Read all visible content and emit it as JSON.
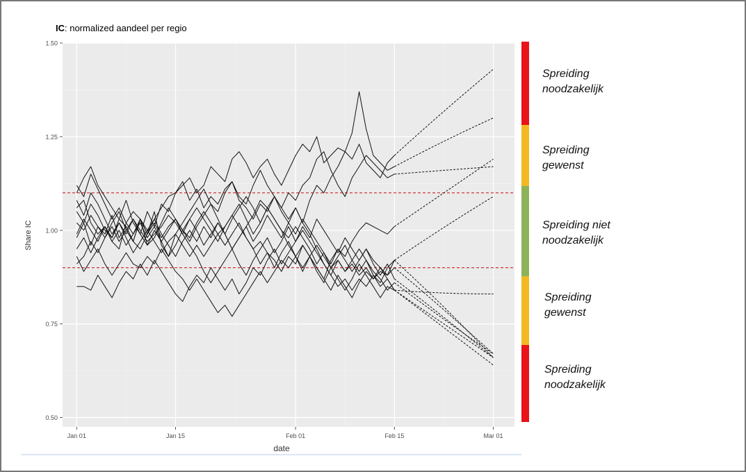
{
  "chart_data": {
    "type": "line",
    "title_bold": "IC",
    "title_rest": ": normalized aandeel per regio",
    "xlabel": "date",
    "ylabel": "Share IC",
    "x_ticks": [
      "Jan 01",
      "Jan 15",
      "Feb 01",
      "Feb 15",
      "Mar 01"
    ],
    "x_tick_days": [
      0,
      14,
      31,
      45,
      59
    ],
    "y_ticks": [
      "1.50",
      "1.25",
      "1.00",
      "0.75",
      "0.50"
    ],
    "y_tick_values": [
      1.5,
      1.25,
      1.0,
      0.75,
      0.5
    ],
    "ylim": [
      0.475,
      1.5
    ],
    "xlim_days": [
      -2,
      62
    ],
    "thresholds": [
      1.1,
      0.9
    ],
    "threshold_color": "#cc2222",
    "observed_end_day": 45,
    "series": [
      {
        "values": [
          1.06,
          1.08,
          1.02,
          0.99,
          1.01,
          0.97,
          0.95,
          1.02,
          1.05,
          1.03,
          0.99,
          1.03,
          1.06,
          1.09,
          1.1,
          1.12,
          1.14,
          1.1,
          1.12,
          1.17,
          1.15,
          1.13,
          1.19,
          1.21,
          1.18,
          1.14,
          1.17,
          1.19,
          1.15,
          1.12,
          1.16,
          1.2,
          1.23,
          1.21,
          1.25,
          1.18,
          1.2,
          1.22,
          1.21,
          1.19,
          1.23,
          1.18,
          1.16,
          1.14,
          1.18,
          1.2
        ],
        "projection": [
          [
            45,
            1.2
          ],
          [
            52,
            1.32
          ],
          [
            59,
            1.43
          ]
        ]
      },
      {
        "values": [
          1.1,
          1.14,
          1.17,
          1.12,
          1.09,
          1.06,
          1.03,
          1.08,
          1.02,
          0.99,
          1.05,
          1.01,
          1.07,
          1.05,
          1.1,
          1.13,
          1.08,
          1.11,
          1.06,
          1.09,
          1.07,
          1.11,
          1.13,
          1.08,
          1.06,
          1.03,
          1.07,
          1.05,
          1.09,
          1.06,
          1.03,
          1.06,
          1.02,
          1.08,
          1.12,
          1.1,
          1.14,
          1.17,
          1.21,
          1.26,
          1.37,
          1.27,
          1.2,
          1.18,
          1.16,
          1.17
        ],
        "projection": [
          [
            45,
            1.17
          ],
          [
            52,
            1.24
          ],
          [
            59,
            1.3
          ]
        ]
      },
      {
        "values": [
          0.98,
          1.02,
          0.96,
          1.01,
          0.99,
          1.04,
          0.98,
          1.01,
          0.97,
          1.03,
          0.99,
          1.05,
          0.96,
          0.93,
          0.99,
          1.02,
          1.05,
          1.08,
          1.11,
          1.07,
          1.05,
          1.1,
          1.13,
          1.09,
          1.07,
          1.12,
          1.16,
          1.12,
          1.09,
          1.06,
          1.1,
          1.08,
          1.12,
          1.14,
          1.19,
          1.21,
          1.16,
          1.12,
          1.09,
          1.14,
          1.17,
          1.2,
          1.18,
          1.16,
          1.14,
          1.15
        ],
        "projection": [
          [
            45,
            1.15
          ],
          [
            52,
            1.16
          ],
          [
            59,
            1.17
          ]
        ]
      },
      {
        "values": [
          1.02,
          1.0,
          1.04,
          1.01,
          0.98,
          1.02,
          1.05,
          1.0,
          0.97,
          1.03,
          0.96,
          0.98,
          1.02,
          1.06,
          1.03,
          1.0,
          0.97,
          1.01,
          1.04,
          1.07,
          1.03,
          0.99,
          0.95,
          0.98,
          1.01,
          1.04,
          1.08,
          1.06,
          1.03,
          1.0,
          0.96,
          0.93,
          0.89,
          0.93,
          0.9,
          0.87,
          0.92,
          0.95,
          0.93,
          0.97,
          1.0,
          1.02,
          1.01,
          1.0,
          0.99,
          1.01
        ],
        "projection": [
          [
            45,
            1.01
          ],
          [
            52,
            1.1
          ],
          [
            59,
            1.19
          ]
        ]
      },
      {
        "values": [
          1.05,
          1.02,
          1.07,
          1.04,
          1.0,
          0.98,
          1.03,
          1.01,
          0.97,
          0.95,
          0.99,
          1.02,
          0.98,
          1.01,
          1.03,
          1.0,
          0.98,
          1.02,
          1.05,
          1.02,
          0.99,
          1.01,
          1.04,
          1.01,
          0.98,
          0.95,
          0.97,
          0.94,
          0.92,
          0.89,
          0.93,
          0.91,
          0.96,
          0.93,
          0.9,
          0.87,
          0.84,
          0.88,
          0.85,
          0.82,
          0.86,
          0.89,
          0.87,
          0.9,
          0.88,
          0.92
        ],
        "projection": [
          [
            45,
            0.92
          ],
          [
            52,
            1.01
          ],
          [
            59,
            1.09
          ]
        ]
      },
      {
        "values": [
          0.99,
          1.03,
          1.0,
          0.97,
          1.01,
          0.98,
          1.02,
          0.99,
          1.03,
          1.0,
          0.97,
          0.99,
          1.01,
          1.04,
          1.02,
          0.99,
          1.03,
          1.06,
          1.03,
          1.0,
          0.97,
          1.01,
          1.04,
          1.07,
          1.03,
          0.99,
          1.02,
          1.06,
          1.03,
          1.0,
          0.98,
          1.01,
          0.98,
          0.95,
          0.91,
          0.94,
          0.9,
          0.93,
          0.96,
          0.92,
          0.89,
          0.92,
          0.88,
          0.85,
          0.87,
          0.84
        ],
        "projection": [
          [
            45,
            0.84
          ],
          [
            52,
            0.83
          ],
          [
            59,
            0.83
          ]
        ]
      },
      {
        "values": [
          0.85,
          0.85,
          0.84,
          0.88,
          0.85,
          0.82,
          0.86,
          0.89,
          0.87,
          0.91,
          0.88,
          0.92,
          0.89,
          0.86,
          0.83,
          0.81,
          0.85,
          0.88,
          0.86,
          0.9,
          0.87,
          0.84,
          0.87,
          0.83,
          0.86,
          0.9,
          0.88,
          0.92,
          0.95,
          0.91,
          0.94,
          0.97,
          1.0,
          0.97,
          0.94,
          0.91,
          0.88,
          0.85,
          0.87,
          0.84,
          0.87,
          0.85,
          0.88,
          0.86,
          0.9,
          0.92
        ],
        "projection": [
          [
            45,
            0.92
          ],
          [
            52,
            0.8
          ],
          [
            59,
            0.66
          ]
        ]
      },
      {
        "values": [
          0.93,
          0.89,
          0.92,
          0.95,
          0.91,
          0.88,
          0.91,
          0.94,
          0.91,
          0.9,
          0.93,
          0.91,
          0.95,
          0.92,
          0.89,
          0.87,
          0.84,
          0.87,
          0.84,
          0.81,
          0.78,
          0.8,
          0.77,
          0.8,
          0.83,
          0.86,
          0.89,
          0.86,
          0.89,
          0.92,
          0.9,
          0.93,
          0.9,
          0.93,
          0.96,
          0.93,
          0.9,
          0.92,
          0.89,
          0.91,
          0.88,
          0.9,
          0.87,
          0.89,
          0.88,
          0.9
        ],
        "projection": [
          [
            45,
            0.9
          ],
          [
            52,
            0.79
          ],
          [
            59,
            0.67
          ]
        ]
      },
      {
        "values": [
          1.12,
          1.09,
          1.15,
          1.11,
          1.07,
          1.03,
          1.06,
          1.02,
          0.99,
          1.03,
          1.0,
          0.97,
          0.94,
          0.97,
          0.99,
          0.96,
          0.93,
          0.96,
          0.93,
          0.96,
          0.99,
          0.96,
          0.99,
          1.02,
          0.98,
          0.95,
          0.91,
          0.94,
          0.9,
          0.94,
          0.97,
          0.93,
          0.96,
          0.93,
          0.89,
          0.86,
          0.9,
          0.87,
          0.84,
          0.87,
          0.91,
          0.88,
          0.85,
          0.82,
          0.85,
          0.84
        ],
        "projection": [
          [
            45,
            0.84
          ],
          [
            52,
            0.74
          ],
          [
            59,
            0.64
          ]
        ]
      },
      {
        "values": [
          0.95,
          0.98,
          0.94,
          0.98,
          1.01,
          0.97,
          1.0,
          0.96,
          0.99,
          1.02,
          0.98,
          1.01,
          0.97,
          1.0,
          1.03,
          0.99,
          0.96,
          0.93,
          0.89,
          0.86,
          0.89,
          0.92,
          0.95,
          0.91,
          0.88,
          0.92,
          0.95,
          0.98,
          0.94,
          0.97,
          1.01,
          0.97,
          1.01,
          0.98,
          1.03,
          1.0,
          0.97,
          0.94,
          0.98,
          0.95,
          0.92,
          0.95,
          0.91,
          0.88,
          0.91,
          0.87
        ],
        "projection": [
          [
            45,
            0.87
          ],
          [
            52,
            0.77
          ],
          [
            59,
            0.66
          ]
        ]
      },
      {
        "values": [
          1.08,
          1.04,
          1.1,
          1.07,
          1.03,
          0.99,
          1.02,
          0.98,
          0.94,
          0.97,
          1.0,
          1.03,
          0.99,
          0.96,
          0.93,
          0.97,
          1.0,
          0.97,
          1.01,
          0.98,
          1.02,
          0.99,
          1.03,
          1.06,
          1.09,
          1.06,
          1.02,
          1.06,
          1.09,
          1.05,
          1.02,
          1.06,
          1.02,
          0.99,
          0.95,
          0.91,
          0.88,
          0.92,
          0.89,
          0.92,
          0.95,
          0.92,
          0.89,
          0.87,
          0.84,
          0.86
        ],
        "projection": [
          [
            45,
            0.86
          ],
          [
            52,
            0.76
          ],
          [
            59,
            0.67
          ]
        ]
      },
      {
        "values": [
          0.91,
          0.93,
          0.97,
          0.94,
          0.98,
          1.01,
          0.97,
          1.0,
          1.03,
          0.99,
          0.96,
          1.0,
          0.97,
          0.93,
          0.96,
          1.0,
          1.03,
          1.0,
          0.96,
          0.99,
          1.02,
          0.99,
          0.95,
          0.98,
          1.01,
          0.97,
          1.0,
          1.04,
          1.01,
          0.98,
          1.02,
          0.99,
          1.03,
          1.0,
          0.97,
          0.94,
          0.91,
          0.95,
          0.92,
          0.89,
          0.92,
          0.95,
          0.92,
          0.9,
          0.87,
          0.84
        ],
        "projection": [
          [
            45,
            0.84
          ],
          [
            52,
            0.75
          ],
          [
            59,
            0.66
          ]
        ]
      }
    ]
  },
  "zones": [
    {
      "label": "Spreiding noodzakelijk",
      "color": "#e8141a"
    },
    {
      "label": "Spreiding gewenst",
      "color": "#f2b922"
    },
    {
      "label": "Spreiding niet noodzakelijk",
      "color": "#8db35a"
    },
    {
      "label": "Spreiding gewenst",
      "color": "#f2b922"
    },
    {
      "label": "Spreiding noodzakelijk",
      "color": "#e8141a"
    }
  ],
  "zone_labels": {
    "z0": {
      "line1": "Spreiding",
      "line2": "noodzakelijk"
    },
    "z1": {
      "line1": "Spreiding",
      "line2": "gewenst"
    },
    "z2": {
      "line1": "Spreiding niet",
      "line2": "noodzakelijk"
    },
    "z3": {
      "line1": "Spreiding",
      "line2": "gewenst"
    },
    "z4": {
      "line1": "Spreiding",
      "line2": "noodzakelijk"
    }
  }
}
